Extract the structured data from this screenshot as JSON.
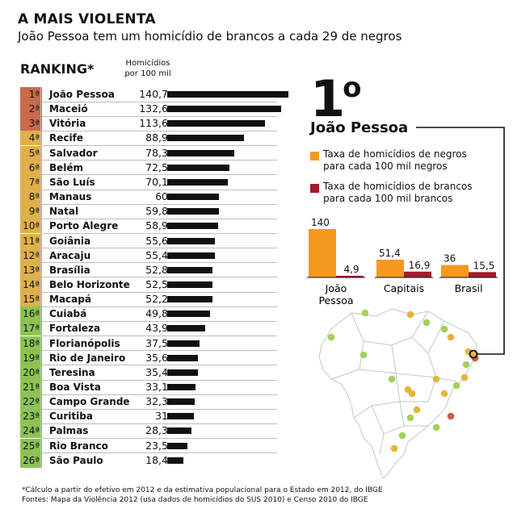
{
  "title": "A MAIS VIOLENTA",
  "subtitle": "João Pessoa tem um homicídio de brancos a cada 29 de negros",
  "ranking_label": "RANKING*",
  "column_header_line1": "Homicídios",
  "column_header_line2": "por 100 mil",
  "highlight_rank": "1",
  "highlight_rank_sup": "o",
  "highlight_city": "João Pessoa",
  "legend": {
    "negros_line1": "Taxa de homicídios de negros",
    "negros_line2": "para cada 100  mil negros",
    "brancos_line1": "Taxa de homicídios de brancos",
    "brancos_line2": "para cada 100 mil brancos"
  },
  "colors": {
    "orange": "#f39a1f",
    "darkred": "#a31b2c",
    "rank_top": "#c96a4a",
    "rank_mid": "#e0b04a",
    "rank_low": "#8cc352",
    "map_green": "#a5cf5a",
    "map_yellow": "#e3b53c",
    "map_red": "#cf5a45"
  },
  "footnote1": "*Cálculo a partir do efetivo em 2012 e da estimativa populacional para o Estado em 2012, do IBGE",
  "footnote2": "Fontes: Mapa da Violência 2012 (usa dados de homicídios do SUS 2010) e Censo 2010 do IBGE",
  "chart_data": [
    {
      "type": "bar",
      "title": "RANKING*",
      "ylabel": "Homicídios por 100 mil",
      "categories": [
        "João Pessoa",
        "Maceió",
        "Vitória",
        "Recife",
        "Salvador",
        "Belém",
        "São Luís",
        "Manaus",
        "Natal",
        "Porto Alegre",
        "Goiânia",
        "Aracaju",
        "Brasília",
        "Belo Horizonte",
        "Macapá",
        "Cuiabá",
        "Fortaleza",
        "Florianópolis",
        "Rio de Janeiro",
        "Teresina",
        "Boa Vista",
        "Campo Grande",
        "Curitiba",
        "Palmas",
        "Rio Branco",
        "São Paulo"
      ],
      "ranks": [
        "1ª",
        "2ª",
        "3ª",
        "4ª",
        "5ª",
        "6ª",
        "7ª",
        "8ª",
        "9ª",
        "10ª",
        "11ª",
        "12ª",
        "13ª",
        "14ª",
        "15ª",
        "16ª",
        "17ª",
        "18ª",
        "19ª",
        "20ª",
        "21ª",
        "22ª",
        "23ª",
        "24ª",
        "25ª",
        "26ª"
      ],
      "value_labels": [
        "140,7",
        "132,6",
        "113,6",
        "88,9",
        "78,3",
        "72,5",
        "70,1",
        "60",
        "59,8",
        "58,9",
        "55,6",
        "55,4",
        "52,8",
        "52,5",
        "52,2",
        "49,8",
        "43,9",
        "37,5",
        "35,6",
        "35,4",
        "33,1",
        "32,3",
        "31",
        "28,3",
        "23,5",
        "18,4"
      ],
      "values": [
        140.7,
        132.6,
        113.6,
        88.9,
        78.3,
        72.5,
        70.1,
        60,
        59.8,
        58.9,
        55.6,
        55.4,
        52.8,
        52.5,
        52.2,
        49.8,
        43.9,
        37.5,
        35.6,
        35.4,
        33.1,
        32.3,
        31,
        28.3,
        23.5,
        18.4
      ]
    },
    {
      "type": "bar",
      "categories": [
        "João Pessoa",
        "Capitais",
        "Brasil"
      ],
      "series": [
        {
          "name": "Taxa de homicídios de negros para cada 100  mil negros",
          "values": [
            140,
            51.4,
            36
          ],
          "labels": [
            "140",
            "51,4",
            "36"
          ]
        },
        {
          "name": "Taxa de homicídios de brancos para cada 100 mil brancos",
          "values": [
            4.9,
            16.9,
            15.5
          ],
          "labels": [
            "4,9",
            "16,9",
            "15,5"
          ]
        }
      ]
    }
  ]
}
